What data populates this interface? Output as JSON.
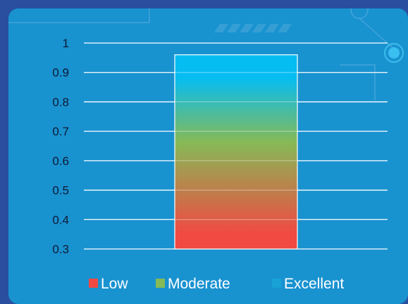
{
  "chart_data": {
    "type": "bar",
    "categories": [
      ""
    ],
    "series": [
      {
        "name": "",
        "values": [
          0.96
        ]
      }
    ],
    "ylim": [
      0.3,
      1
    ],
    "yticks": [
      {
        "value": 1,
        "label": "1"
      },
      {
        "value": 0.9,
        "label": "0.9"
      },
      {
        "value": 0.8,
        "label": "0.8"
      },
      {
        "value": 0.7,
        "label": "0.7"
      },
      {
        "value": 0.6,
        "label": "0.6"
      },
      {
        "value": 0.5,
        "label": "0.5"
      },
      {
        "value": 0.4,
        "label": "0.4"
      },
      {
        "value": 0.3,
        "label": "0.3"
      }
    ],
    "grid": true,
    "legend_position": "bottom",
    "legend": [
      {
        "label": "Low",
        "color": "#f04a43"
      },
      {
        "label": "Moderate",
        "color": "#86ba56"
      },
      {
        "label": "Excellent",
        "color": "#17a3d6"
      }
    ],
    "gradient_colors": [
      "#f04a43",
      "#86ba56",
      "#06bdf2"
    ]
  },
  "colors": {
    "page_background": "#2a4f9e",
    "card_background": "#1992d0",
    "gridline": "#ffffff",
    "tick_text": "#0e1a35"
  }
}
